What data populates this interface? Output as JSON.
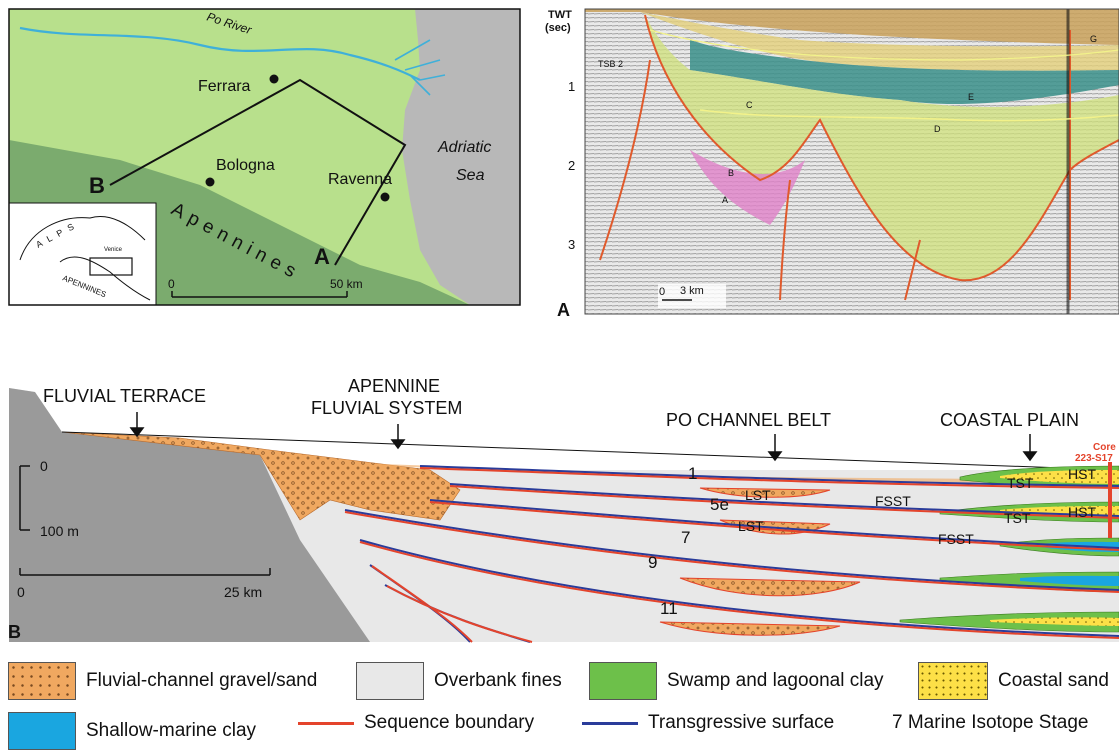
{
  "map": {
    "river": "Po River",
    "cities": [
      {
        "name": "Ferrara"
      },
      {
        "name": "Bologna"
      },
      {
        "name": "Ravenna"
      }
    ],
    "sea_line1": "Adriatic",
    "sea_line2": "Sea",
    "mountains": "Apennines",
    "point_a": "A",
    "point_b": "B",
    "scale_zero": "0",
    "scale_label": "50 km",
    "inset_alps": "A L P S",
    "inset_city": "Venice",
    "inset_mountains": "APENNINES",
    "colors": {
      "plain": "#b8e08c",
      "apennines": "#7bab6e",
      "sea": "#b8b8b8",
      "river": "#3fb0d9"
    }
  },
  "seismic": {
    "panel_label": "A",
    "axis_title_1": "TWT",
    "axis_title_2": "(sec)",
    "ticks": [
      "1",
      "2",
      "3"
    ],
    "scale_zero": "0",
    "scale_label": "3 km",
    "unit_labels": [
      "TSB 2",
      "C",
      "E",
      "D",
      "B",
      "A",
      "G"
    ]
  },
  "section": {
    "panel_label": "B",
    "labels": {
      "fluvial_terrace": "FLUVIAL TERRACE",
      "apennine_line1": "APENNINE",
      "apennine_line2": "FLUVIAL SYSTEM",
      "po_belt": "PO CHANNEL BELT",
      "coastal_plain": "COASTAL PLAIN",
      "core_line1": "Core",
      "core_line2": "223-S17"
    },
    "vscale_top": "0",
    "vscale_bottom": "100 m",
    "hscale_zero": "0",
    "hscale_label": "25 km",
    "stages": [
      "1",
      "5e",
      "7",
      "9",
      "11"
    ],
    "tracts": [
      "LST",
      "LST",
      "FSST",
      "FSST",
      "TST",
      "TST",
      "HST",
      "HST"
    ]
  },
  "legend": {
    "items": [
      {
        "label": "Fluvial-channel gravel/sand",
        "color": "#f0a860"
      },
      {
        "label": "Overbank fines",
        "color": "#e8e8e8"
      },
      {
        "label": "Swamp and lagoonal clay",
        "color": "#6dc04a"
      },
      {
        "label": "Coastal sand",
        "color": "#fde047"
      },
      {
        "label": "Shallow-marine clay",
        "color": "#1aa6e0"
      },
      {
        "label": "Sequence boundary",
        "color": "#e4442c"
      },
      {
        "label": "Transgressive surface",
        "color": "#2a3c9a"
      },
      {
        "label": "7 Marine Isotope Stage"
      }
    ]
  }
}
